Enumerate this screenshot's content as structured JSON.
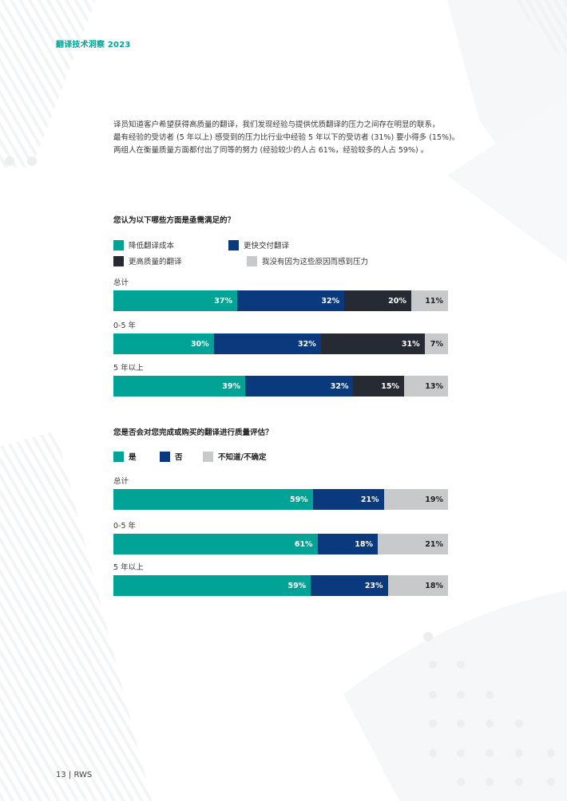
{
  "header": {
    "title": "翻译技术洞察 2023"
  },
  "intro": {
    "lines": [
      "译员知道客户希望获得高质量的翻译，我们发现经验与提供优质翻译的压力之间存在明显的联系，",
      "最有经验的受访者 (5 年以上) 感受到的压力比行业中经验 5 年以下的受访者 (31%) 要小得多 (15%)。",
      "两组人在衡量质量方面都付出了同等的努力 (经验较少的人占 61%，经验较多的人占 59%) 。"
    ]
  },
  "colors": {
    "teal": "#00a396",
    "navy": "#0a3a7d",
    "dark": "#262a33",
    "gray": "#c8c9ca"
  },
  "chart_data": [
    {
      "type": "bar",
      "orientation": "horizontal-stacked",
      "title": "您认为以下哪些方面是亟需满足的？",
      "categories": [
        "总计",
        "0-5 年",
        "5 年以上"
      ],
      "series": [
        {
          "name": "降低翻译成本",
          "values": [
            37,
            30,
            39
          ],
          "color": "#00a396"
        },
        {
          "name": "更快交付翻译",
          "values": [
            32,
            32,
            32
          ],
          "color": "#0a3a7d"
        },
        {
          "name": "更高质量的翻译",
          "values": [
            20,
            31,
            15
          ],
          "color": "#262a33"
        },
        {
          "name": "我没有因为这些原因而感到压力",
          "values": [
            11,
            7,
            13
          ],
          "color": "#c8c9ca"
        }
      ],
      "unit": "%",
      "legend": "top",
      "grid": false
    },
    {
      "type": "bar",
      "orientation": "horizontal-stacked",
      "title": "您是否会对您完成或购买的翻译进行质量评估？",
      "categories": [
        "总计",
        "0-5 年",
        "5 年以上"
      ],
      "series": [
        {
          "name": "是",
          "values": [
            59,
            61,
            59
          ],
          "color": "#00a396"
        },
        {
          "name": "否",
          "values": [
            21,
            18,
            23
          ],
          "color": "#0a3a7d"
        },
        {
          "name": "不知道/不确定",
          "values": [
            19,
            21,
            18
          ],
          "color": "#c8c9ca"
        }
      ],
      "unit": "%",
      "legend": "top",
      "grid": false
    }
  ],
  "footer": {
    "page": "13",
    "separator": "|",
    "brand": "RWS"
  }
}
